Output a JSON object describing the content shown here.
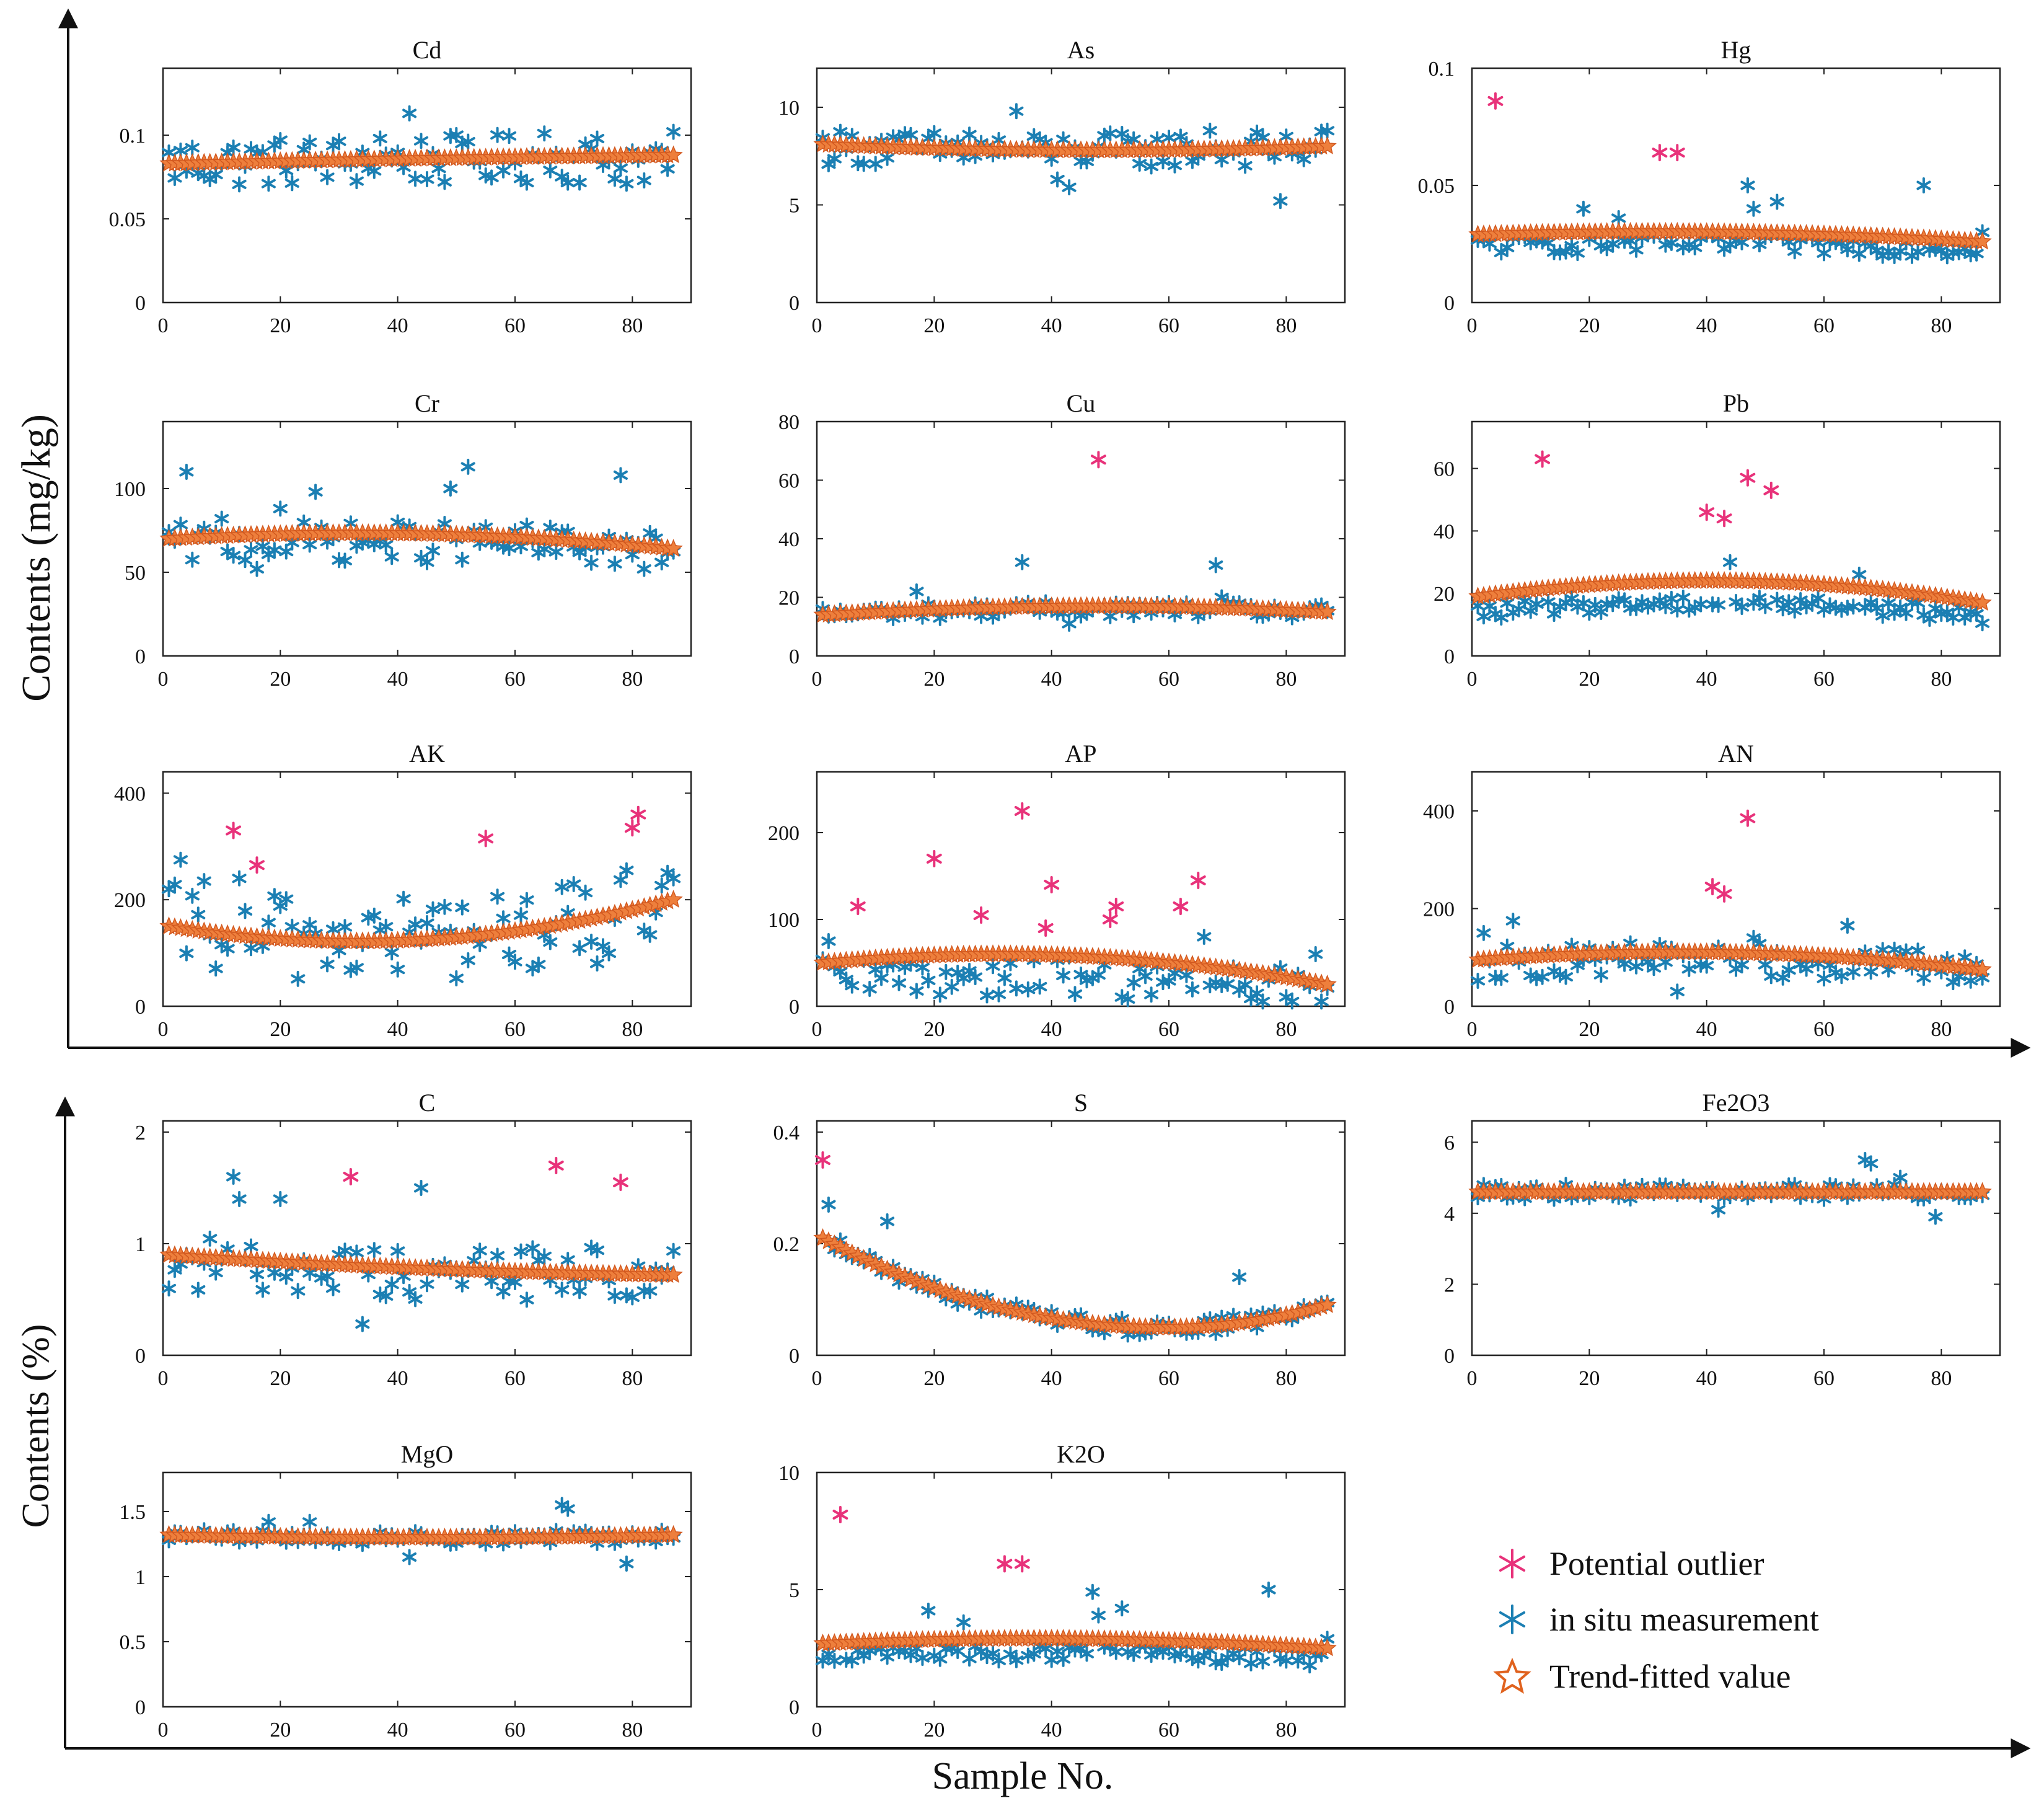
{
  "figure": {
    "y_label_mgkg": "Contents (mg/kg)",
    "y_label_percent": "Contents (%)",
    "x_label": "Sample No."
  },
  "legend": {
    "outlier": "Potential outlier",
    "measurement": "in situ measurement",
    "trend": "Trend-fitted value"
  },
  "colors": {
    "measurement": "#1b7fb3",
    "outlier": "#e8327a",
    "trend": "#ee7f3c"
  },
  "chart_data": [
    {
      "id": "cd",
      "type": "scatter",
      "title": "Cd",
      "xlim": [
        0,
        90
      ],
      "ylim": [
        0,
        0.14
      ],
      "yticks": [
        0,
        0.05,
        0.1
      ],
      "yticklabels": [
        "0",
        "0.05",
        "0.1"
      ],
      "xticks": [
        0,
        20,
        40,
        60,
        80
      ],
      "xticklabels": [
        "0",
        "20",
        "40",
        "60",
        "80"
      ],
      "n": 87,
      "base": 0.085,
      "spread": 0.015,
      "trend": [
        0.083,
        0.086,
        0.088
      ],
      "outliers": [],
      "peaks": [
        [
          42,
          0.113
        ],
        [
          37,
          0.098
        ],
        [
          51,
          0.095
        ],
        [
          65,
          0.101
        ],
        [
          87,
          0.102
        ],
        [
          79,
          0.071
        ]
      ]
    },
    {
      "id": "as",
      "type": "scatter",
      "title": "As",
      "xlim": [
        0,
        90
      ],
      "ylim": [
        0,
        12
      ],
      "yticks": [
        0,
        5,
        10
      ],
      "yticklabels": [
        "0",
        "5",
        "10"
      ],
      "xticks": [
        0,
        20,
        40,
        60,
        80
      ],
      "xticklabels": [
        "0",
        "20",
        "40",
        "60",
        "80"
      ],
      "n": 87,
      "base": 7.8,
      "spread": 0.9,
      "trend": [
        8.1,
        7.8,
        8.0
      ],
      "outliers": [],
      "peaks": [
        [
          34,
          9.8
        ],
        [
          26,
          8.6
        ],
        [
          67,
          8.8
        ],
        [
          43,
          5.9
        ],
        [
          41,
          6.3
        ],
        [
          79,
          5.2
        ],
        [
          87,
          8.8
        ]
      ]
    },
    {
      "id": "hg",
      "type": "scatter",
      "title": "Hg",
      "xlim": [
        0,
        90
      ],
      "ylim": [
        0,
        0.1
      ],
      "yticks": [
        0,
        0.05,
        0.1
      ],
      "yticklabels": [
        "0",
        "0.05",
        "0.1"
      ],
      "xticks": [
        0,
        20,
        40,
        60,
        80
      ],
      "xticklabels": [
        "0",
        "20",
        "40",
        "60",
        "80"
      ],
      "n": 87,
      "base": 0.025,
      "spread": 0.004,
      "trend": [
        0.029,
        0.03,
        0.026
      ],
      "outliers": [
        [
          4,
          0.086
        ],
        [
          32,
          0.064
        ],
        [
          35,
          0.064
        ]
      ],
      "peaks": [
        [
          19,
          0.04
        ],
        [
          47,
          0.05
        ],
        [
          48,
          0.04
        ],
        [
          52,
          0.043
        ],
        [
          25,
          0.036
        ],
        [
          77,
          0.05
        ],
        [
          87,
          0.03
        ]
      ]
    },
    {
      "id": "cr",
      "type": "scatter",
      "title": "Cr",
      "xlim": [
        0,
        90
      ],
      "ylim": [
        0,
        140
      ],
      "yticks": [
        0,
        50,
        100
      ],
      "yticklabels": [
        "0",
        "50",
        "100"
      ],
      "xticks": [
        0,
        20,
        40,
        60,
        80
      ],
      "xticklabels": [
        "0",
        "20",
        "40",
        "60",
        "80"
      ],
      "n": 87,
      "base": 68,
      "spread": 12,
      "trend": [
        70,
        73,
        64
      ],
      "outliers": [],
      "peaks": [
        [
          4,
          110
        ],
        [
          52,
          113
        ],
        [
          78,
          108
        ],
        [
          26,
          98
        ],
        [
          49,
          100
        ],
        [
          20,
          88
        ],
        [
          10,
          82
        ],
        [
          16,
          52
        ],
        [
          82,
          52
        ]
      ]
    },
    {
      "id": "cu",
      "type": "scatter",
      "title": "Cu",
      "xlim": [
        0,
        90
      ],
      "ylim": [
        0,
        80
      ],
      "yticks": [
        0,
        20,
        40,
        60,
        80
      ],
      "yticklabels": [
        "0",
        "20",
        "40",
        "60",
        "80"
      ],
      "xticks": [
        0,
        20,
        40,
        60,
        80
      ],
      "xticklabels": [
        "0",
        "20",
        "40",
        "60",
        "80"
      ],
      "n": 87,
      "base": 16,
      "spread": 2.5,
      "trend": [
        14,
        17,
        15
      ],
      "outliers": [
        [
          48,
          67
        ]
      ],
      "peaks": [
        [
          35,
          32
        ],
        [
          68,
          31
        ],
        [
          17,
          22
        ],
        [
          69,
          20
        ],
        [
          43,
          11
        ]
      ]
    },
    {
      "id": "pb",
      "type": "scatter",
      "title": "Pb",
      "xlim": [
        0,
        90
      ],
      "ylim": [
        0,
        75
      ],
      "yticks": [
        0,
        20,
        40,
        60
      ],
      "yticklabels": [
        "0",
        "20",
        "40",
        "60"
      ],
      "xticks": [
        0,
        20,
        40,
        60,
        80
      ],
      "xticklabels": [
        "0",
        "20",
        "40",
        "60",
        "80"
      ],
      "n": 87,
      "base": 17,
      "spread": 2.5,
      "trend": [
        19,
        24,
        17
      ],
      "outliers": [
        [
          12,
          63
        ],
        [
          40,
          46
        ],
        [
          43,
          44
        ],
        [
          47,
          57
        ],
        [
          51,
          53
        ]
      ],
      "peaks": [
        [
          44,
          30
        ],
        [
          66,
          26
        ]
      ]
    },
    {
      "id": "ak",
      "type": "scatter",
      "title": "AK",
      "xlim": [
        0,
        90
      ],
      "ylim": [
        0,
        440
      ],
      "yticks": [
        0,
        200,
        400
      ],
      "yticklabels": [
        "0",
        "200",
        "400"
      ],
      "xticks": [
        0,
        20,
        40,
        60,
        80
      ],
      "xticklabels": [
        "0",
        "20",
        "40",
        "60",
        "80"
      ],
      "n": 87,
      "base": 130,
      "spread": 85,
      "trend": [
        150,
        125,
        200
      ],
      "outliers": [
        [
          12,
          330
        ],
        [
          16,
          265
        ],
        [
          55,
          315
        ],
        [
          80,
          335
        ],
        [
          81,
          360
        ]
      ],
      "peaks": [
        [
          3,
          275
        ],
        [
          7,
          235
        ],
        [
          13,
          240
        ],
        [
          79,
          255
        ]
      ]
    },
    {
      "id": "ap",
      "type": "scatter",
      "title": "AP",
      "xlim": [
        0,
        90
      ],
      "ylim": [
        0,
        270
      ],
      "yticks": [
        0,
        100,
        200
      ],
      "yticklabels": [
        "0",
        "100",
        "200"
      ],
      "xticks": [
        0,
        20,
        40,
        60,
        80
      ],
      "xticklabels": [
        "0",
        "20",
        "40",
        "60",
        "80"
      ],
      "n": 87,
      "base": 35,
      "spread": 25,
      "trend": [
        50,
        58,
        25
      ],
      "outliers": [
        [
          7,
          115
        ],
        [
          20,
          170
        ],
        [
          28,
          105
        ],
        [
          35,
          225
        ],
        [
          39,
          90
        ],
        [
          40,
          140
        ],
        [
          50,
          100
        ],
        [
          51,
          115
        ],
        [
          62,
          115
        ],
        [
          65,
          145
        ]
      ],
      "peaks": [
        [
          2,
          75
        ],
        [
          66,
          80
        ],
        [
          85,
          60
        ]
      ]
    },
    {
      "id": "an",
      "type": "scatter",
      "title": "AN",
      "xlim": [
        0,
        90
      ],
      "ylim": [
        0,
        480
      ],
      "yticks": [
        0,
        200,
        400
      ],
      "yticklabels": [
        "0",
        "200",
        "400"
      ],
      "xticks": [
        0,
        20,
        40,
        60,
        80
      ],
      "xticklabels": [
        "0",
        "20",
        "40",
        "60",
        "80"
      ],
      "n": 87,
      "base": 95,
      "spread": 35,
      "trend": [
        95,
        110,
        75
      ],
      "outliers": [
        [
          41,
          245
        ],
        [
          43,
          230
        ],
        [
          47,
          385
        ]
      ],
      "peaks": [
        [
          7,
          175
        ],
        [
          2,
          150
        ],
        [
          64,
          165
        ],
        [
          48,
          140
        ],
        [
          35,
          30
        ]
      ]
    },
    {
      "id": "c",
      "type": "scatter",
      "title": "C",
      "xlim": [
        0,
        90
      ],
      "ylim": [
        0,
        2.1
      ],
      "yticks": [
        0,
        1,
        2
      ],
      "yticklabels": [
        "0",
        "1",
        "2"
      ],
      "xticks": [
        0,
        20,
        40,
        60,
        80
      ],
      "xticklabels": [
        "0",
        "20",
        "40",
        "60",
        "80"
      ],
      "n": 87,
      "base": 0.75,
      "spread": 0.25,
      "trend": [
        0.9,
        0.78,
        0.72
      ],
      "outliers": [
        [
          32,
          1.6
        ],
        [
          67,
          1.7
        ],
        [
          78,
          1.55
        ]
      ],
      "peaks": [
        [
          12,
          1.6
        ],
        [
          13,
          1.4
        ],
        [
          20,
          1.4
        ],
        [
          44,
          1.5
        ],
        [
          34,
          0.28
        ]
      ]
    },
    {
      "id": "s",
      "type": "scatter",
      "title": "S",
      "xlim": [
        0,
        90
      ],
      "ylim": [
        0,
        0.42
      ],
      "yticks": [
        0,
        0.2,
        0.4
      ],
      "yticklabels": [
        "0",
        "0.2",
        "0.4"
      ],
      "xticks": [
        0,
        20,
        40,
        60,
        80
      ],
      "xticklabels": [
        "0",
        "20",
        "40",
        "60",
        "80"
      ],
      "n": 87,
      "base": 0.0,
      "spread": 0.015,
      "trend": [
        0.21,
        0.05,
        0.09
      ],
      "trend_shape": "u",
      "outliers": [
        [
          1,
          0.35
        ]
      ],
      "peaks": [
        [
          2,
          0.27
        ],
        [
          12,
          0.24
        ],
        [
          72,
          0.14
        ]
      ]
    },
    {
      "id": "fe2o3",
      "type": "scatter",
      "title": "Fe2O3",
      "xlim": [
        0,
        90
      ],
      "ylim": [
        0,
        6.6
      ],
      "yticks": [
        0,
        2,
        4,
        6
      ],
      "yticklabels": [
        "0",
        "2",
        "4",
        "6"
      ],
      "xticks": [
        0,
        20,
        40,
        60,
        80
      ],
      "xticklabels": [
        "0",
        "20",
        "40",
        "60",
        "80"
      ],
      "n": 87,
      "base": 4.6,
      "spread": 0.2,
      "trend": [
        4.6,
        4.6,
        4.6
      ],
      "outliers": [],
      "peaks": [
        [
          67,
          5.5
        ],
        [
          68,
          5.4
        ],
        [
          79,
          3.9
        ],
        [
          42,
          4.1
        ],
        [
          73,
          5.0
        ]
      ]
    },
    {
      "id": "mgo",
      "type": "scatter",
      "title": "MgO",
      "xlim": [
        0,
        90
      ],
      "ylim": [
        0,
        1.8
      ],
      "yticks": [
        0,
        0.5,
        1,
        1.5
      ],
      "yticklabels": [
        "0",
        "0.5",
        "1",
        "1.5"
      ],
      "xticks": [
        0,
        20,
        40,
        60,
        80
      ],
      "xticklabels": [
        "0",
        "20",
        "40",
        "60",
        "80"
      ],
      "n": 87,
      "base": 1.3,
      "spread": 0.05,
      "trend": [
        1.32,
        1.3,
        1.32
      ],
      "outliers": [],
      "peaks": [
        [
          68,
          1.55
        ],
        [
          69,
          1.52
        ],
        [
          79,
          1.1
        ],
        [
          42,
          1.15
        ],
        [
          18,
          1.42
        ],
        [
          25,
          1.42
        ]
      ]
    },
    {
      "id": "k2o",
      "type": "scatter",
      "title": "K2O",
      "xlim": [
        0,
        90
      ],
      "ylim": [
        0,
        10
      ],
      "yticks": [
        0,
        5,
        10
      ],
      "yticklabels": [
        "0",
        "5",
        "10"
      ],
      "xticks": [
        0,
        20,
        40,
        60,
        80
      ],
      "xticklabels": [
        "0",
        "20",
        "40",
        "60",
        "80"
      ],
      "n": 87,
      "base": 2.3,
      "spread": 0.35,
      "trend": [
        2.7,
        2.9,
        2.5
      ],
      "outliers": [
        [
          4,
          8.2
        ],
        [
          32,
          6.1
        ],
        [
          35,
          6.1
        ]
      ],
      "peaks": [
        [
          19,
          4.1
        ],
        [
          47,
          4.9
        ],
        [
          48,
          3.9
        ],
        [
          52,
          4.2
        ],
        [
          25,
          3.6
        ],
        [
          77,
          5.0
        ],
        [
          87,
          2.9
        ]
      ]
    }
  ]
}
